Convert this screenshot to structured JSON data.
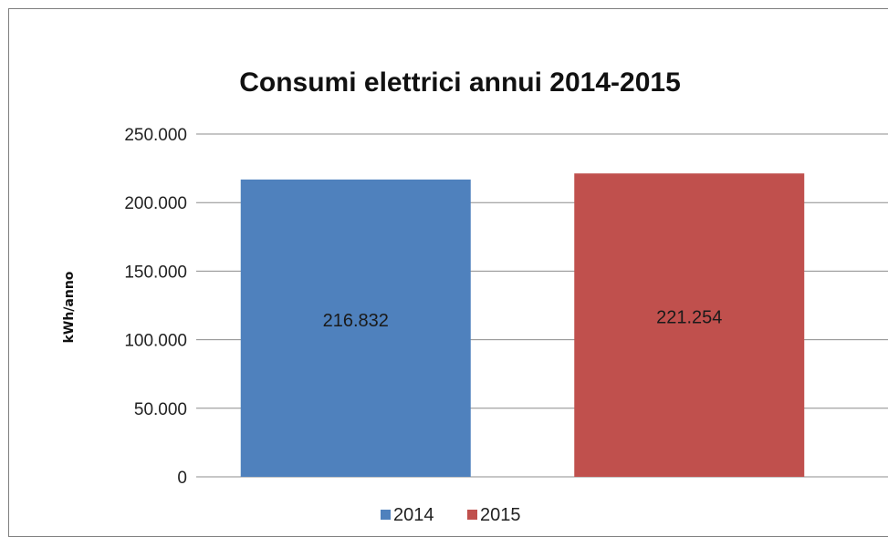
{
  "chart_data": {
    "type": "bar",
    "title": "Consumi elettrici annui 2014-2015",
    "xlabel": "",
    "ylabel": "kWh/anno",
    "ylim": [
      0,
      250000
    ],
    "yticks": [
      0,
      50000,
      100000,
      150000,
      200000,
      250000
    ],
    "ytick_labels": [
      "0",
      "50.000",
      "100.000",
      "150.000",
      "200.000",
      "250.000"
    ],
    "grid": true,
    "legend_position": "bottom",
    "categories": [
      "2014",
      "2015"
    ],
    "series": [
      {
        "name": "2014",
        "value": 216832,
        "value_label": "216.832",
        "color": "#4f81bd"
      },
      {
        "name": "2015",
        "value": 221254,
        "value_label": "221.254",
        "color": "#c0504d"
      }
    ]
  }
}
